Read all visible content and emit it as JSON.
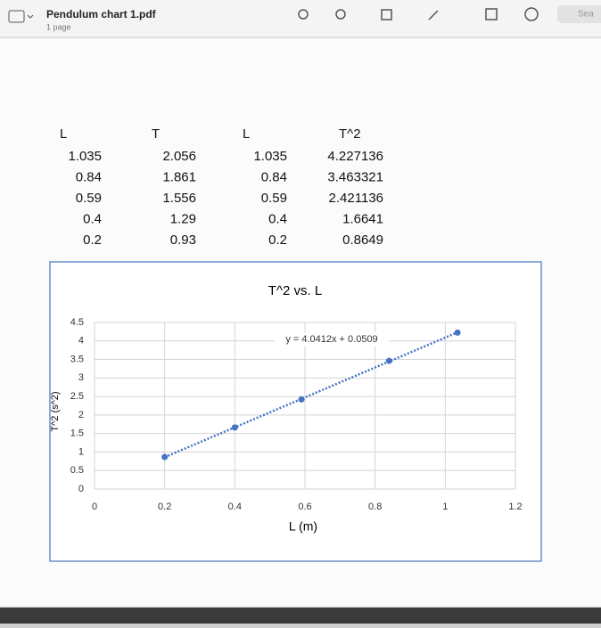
{
  "app": {
    "file_name": "Pendulum chart 1.pdf",
    "page_count": "1 page",
    "search_placeholder": "Sea"
  },
  "tables": [
    {
      "headers": [
        "L",
        "T"
      ],
      "rows": [
        [
          "1.035",
          "2.056"
        ],
        [
          "0.84",
          "1.861"
        ],
        [
          "0.59",
          "1.556"
        ],
        [
          "0.4",
          "1.29"
        ],
        [
          "0.2",
          "0.93"
        ]
      ]
    },
    {
      "headers": [
        "L",
        "T^2"
      ],
      "rows": [
        [
          "1.035",
          "4.227136"
        ],
        [
          "0.84",
          "3.463321"
        ],
        [
          "0.59",
          "2.421136"
        ],
        [
          "0.4",
          "1.6641"
        ],
        [
          "0.2",
          "0.8649"
        ]
      ]
    }
  ],
  "chart_data": {
    "type": "scatter",
    "title": "T^2 vs. L",
    "x_label": "L (m)",
    "y_label": "T^2 (s^2)",
    "annotation": "y = 4.0412x + 0.0509",
    "x": [
      1.035,
      0.84,
      0.59,
      0.4,
      0.2
    ],
    "series": [
      {
        "color": "#4472c4",
        "values": [
          4.227136,
          3.463321,
          2.421136,
          1.6641,
          0.8649
        ]
      }
    ],
    "xlim": [
      0,
      1.2
    ],
    "ylim": [
      0,
      4.5
    ],
    "xticks": [
      0,
      0.2,
      0.4,
      0.6,
      0.8,
      1,
      1.2
    ],
    "yticks": [
      0,
      0.5,
      1,
      1.5,
      2,
      2.5,
      3,
      3.5,
      4,
      4.5
    ],
    "grid": true,
    "trendline": "linear"
  }
}
